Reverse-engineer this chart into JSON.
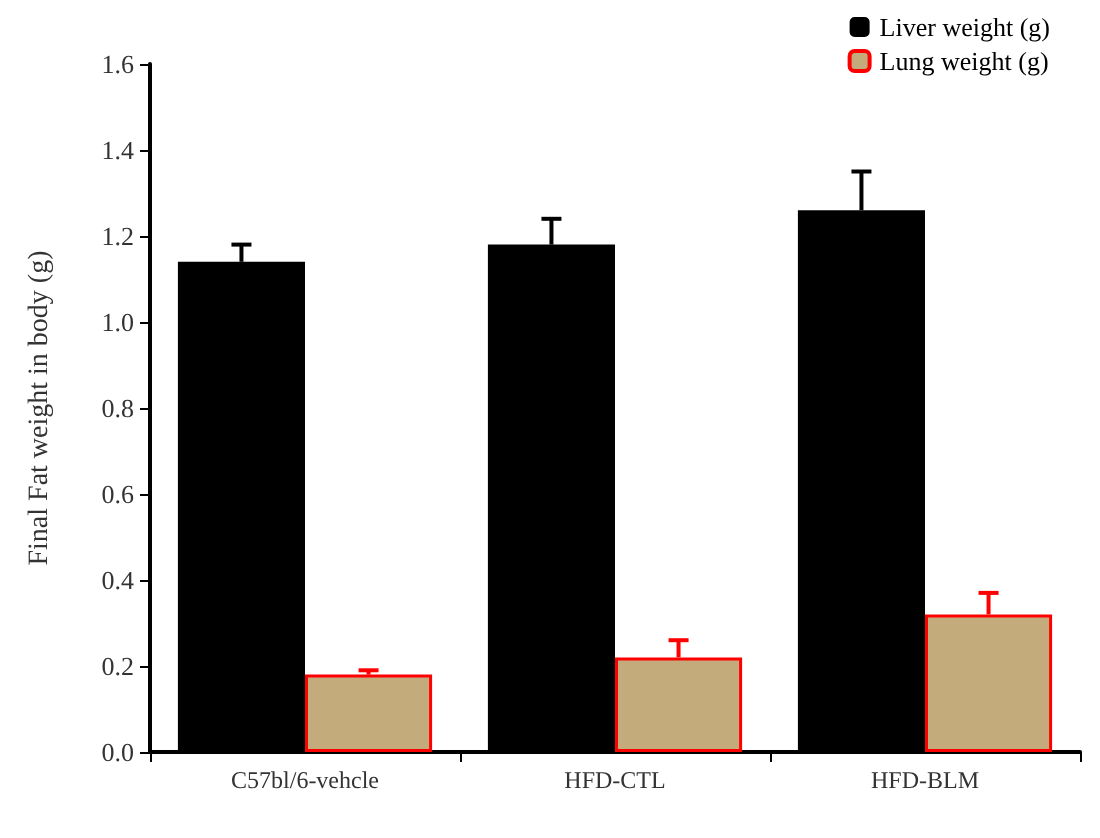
{
  "chart_data": {
    "type": "bar",
    "ylabel": "Final Fat weight in body (g)",
    "categories": [
      "C57bl/6-vehcle",
      "HFD-CTL",
      "HFD-BLM"
    ],
    "series": [
      {
        "name": "Liver weight (g)",
        "color": "#000000",
        "values": [
          1.14,
          1.18,
          1.26
        ],
        "errors": [
          0.04,
          0.06,
          0.09
        ]
      },
      {
        "name": "Lung weight (g)",
        "color": "#c4ab7c",
        "values": [
          0.18,
          0.22,
          0.32
        ],
        "errors": [
          0.01,
          0.04,
          0.05
        ]
      }
    ],
    "ylim": [
      0,
      1.6
    ],
    "yticks": [
      {
        "value": 0,
        "label": "0.0"
      },
      0.2,
      0.4,
      0.6,
      0.8,
      {
        "value": 1,
        "label": "1.0"
      },
      1.2,
      1.4,
      1.6
    ],
    "legend": "top right",
    "grid": false
  }
}
